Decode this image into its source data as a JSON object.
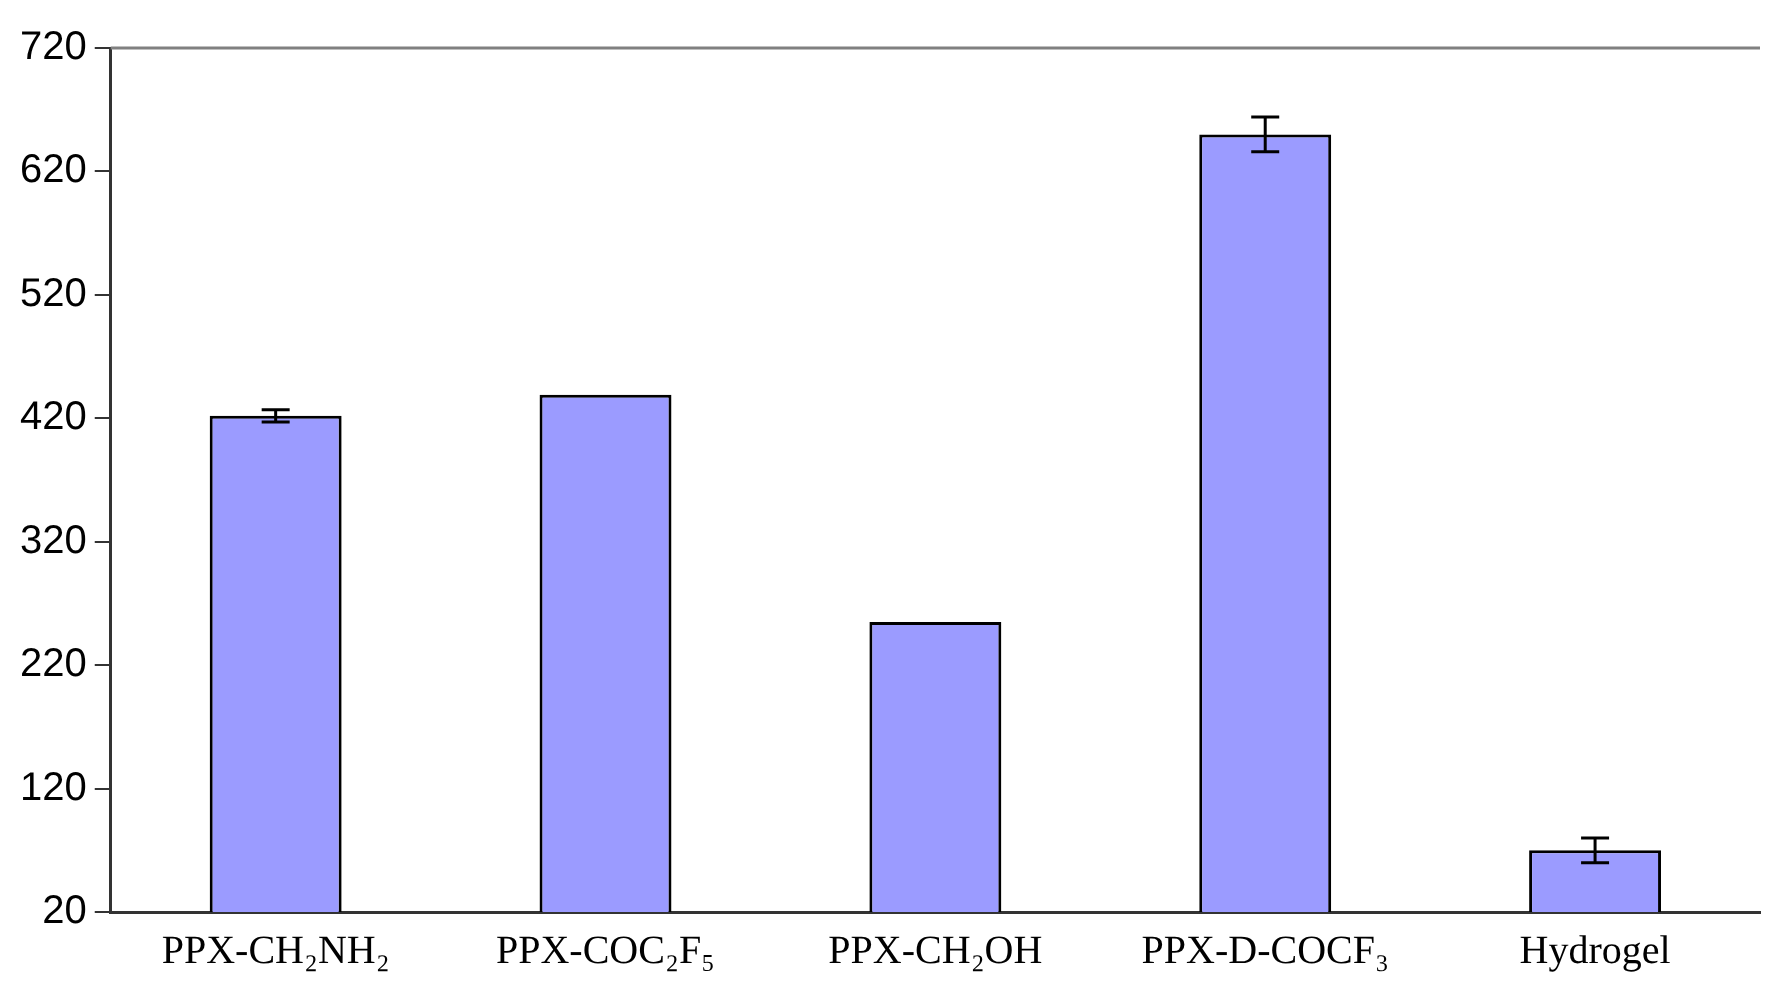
{
  "chart_data": {
    "type": "bar",
    "categories": [
      "PPX-CH₂NH₂",
      "PPX-COC₂F₅",
      "PPX-CH₂OH",
      "PPX-D-COCF₃",
      "Hydrogel"
    ],
    "values": [
      422,
      439,
      255,
      650,
      70
    ],
    "errors": [
      5,
      null,
      null,
      14,
      10
    ],
    "color": "#9b9bff",
    "ylim": [
      20,
      720
    ],
    "yticks": [
      20,
      120,
      220,
      320,
      420,
      520,
      620,
      720
    ],
    "grid": false,
    "legend": false
  }
}
